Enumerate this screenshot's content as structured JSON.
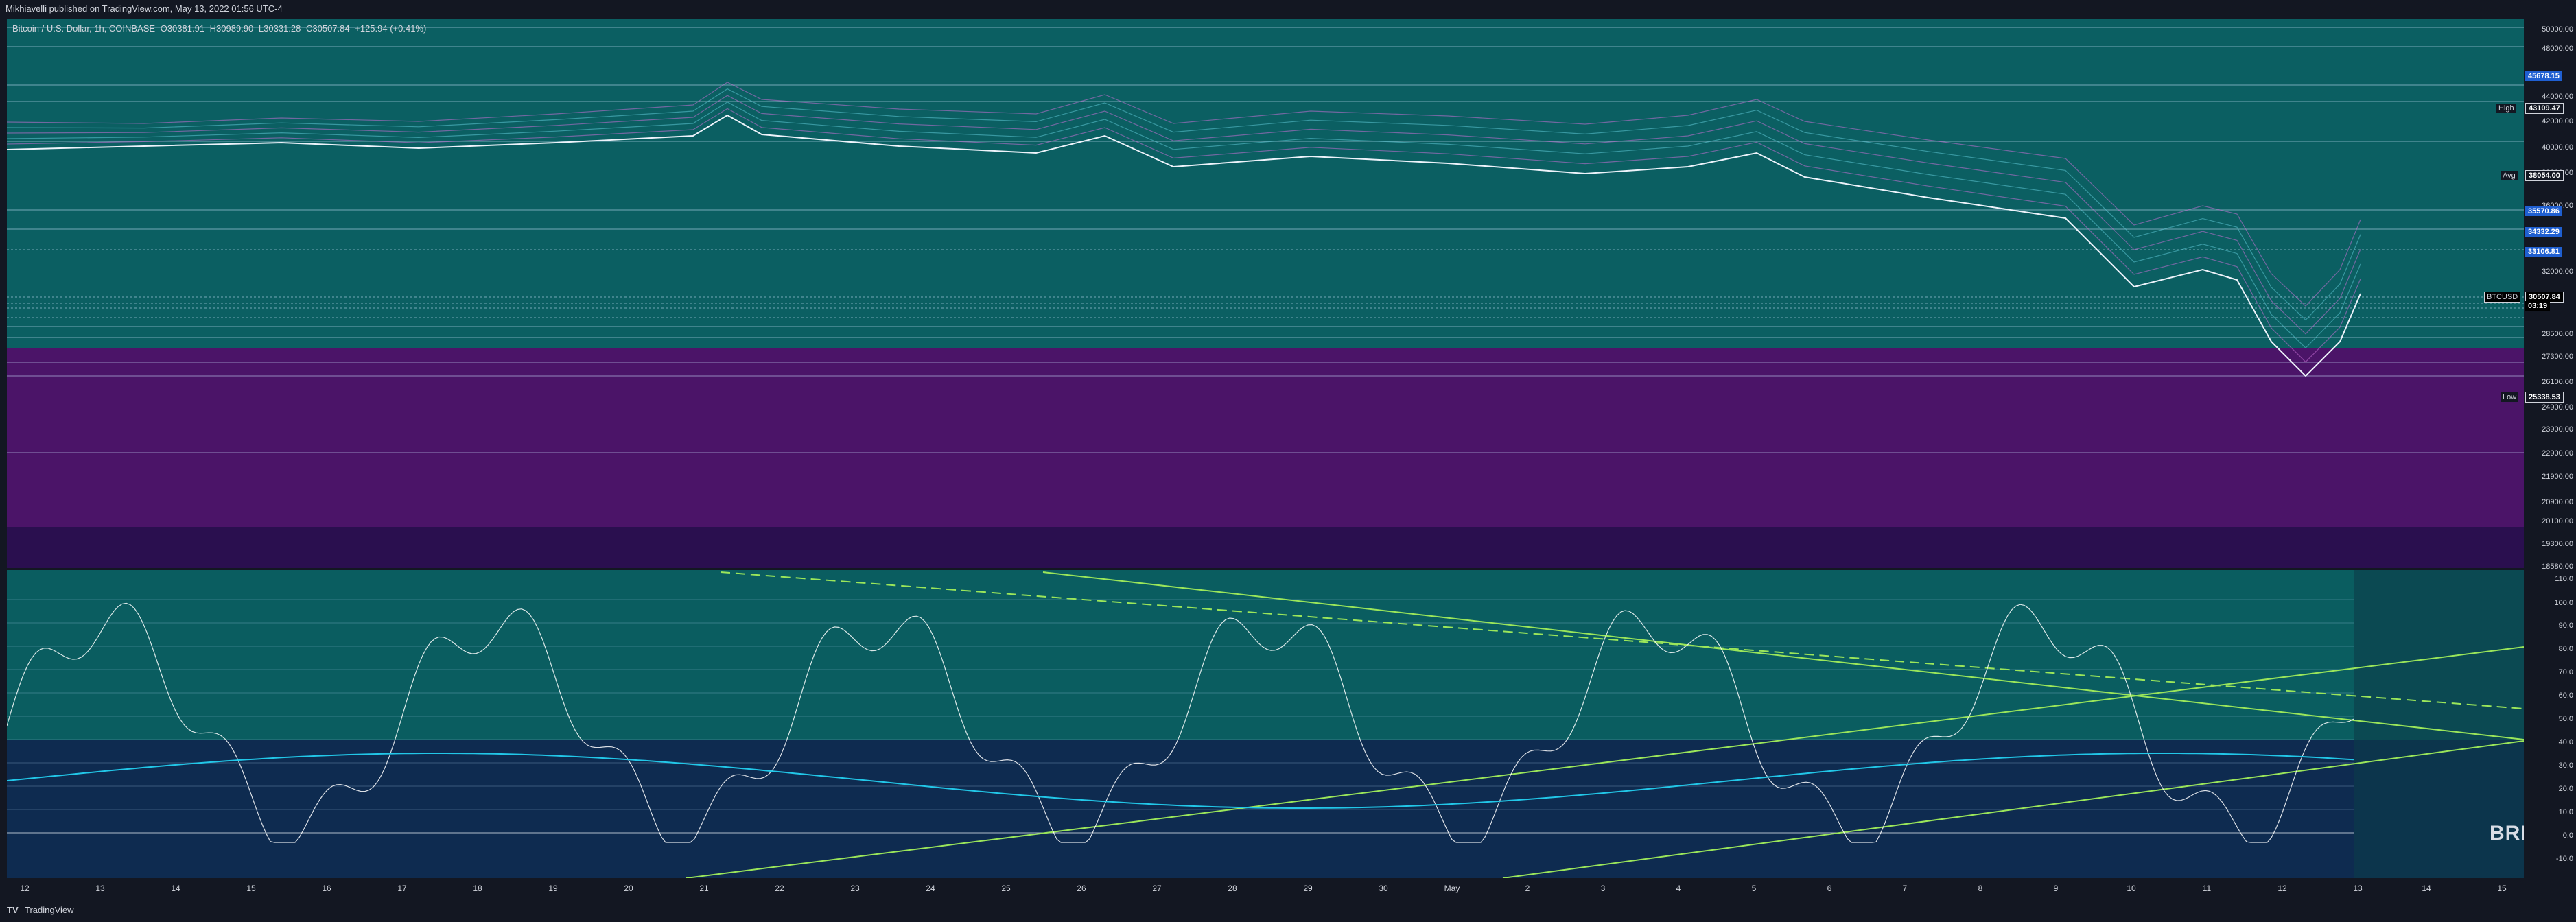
{
  "header": {
    "publisher_line": "Mikhiavelli published on TradingView.com, May 13, 2022 01:56 UTC-4"
  },
  "legend": {
    "symbol": "Bitcoin / U.S. Dollar, 1h, COINBASE",
    "open": "O30381.91",
    "high": "H30989.90",
    "low": "L30331.28",
    "close": "C30507.84",
    "change": "+125.94 (+0.41%)"
  },
  "price_axis": {
    "ticks": [
      "50000.00",
      "48000.00",
      "44000.00",
      "42000.00",
      "40000.00",
      "38000.00",
      "36000.00",
      "32000.00",
      "28500.00",
      "27300.00",
      "26100.00",
      "24900.00",
      "23900.00",
      "22900.00",
      "21900.00",
      "20900.00",
      "20100.00",
      "19300.00",
      "18580.00"
    ],
    "tags": {
      "t1": {
        "value": "45678.15"
      },
      "t2": {
        "value": "43109.47"
      },
      "t3": {
        "value": "38054.00"
      },
      "t4": {
        "value": "35570.86"
      },
      "t5": {
        "value": "34332.29"
      },
      "t6": {
        "value": "33106.81"
      },
      "t7": {
        "value": "30507.84"
      },
      "t8": {
        "value": "03:19"
      },
      "t9": {
        "value": "25338.53"
      }
    },
    "labels": {
      "high": "High",
      "avg": "Avg",
      "low": "Low",
      "symbol": "BTCUSD"
    }
  },
  "osc_axis": {
    "ticks": [
      "110.0",
      "100.0",
      "90.0",
      "80.0",
      "70.0",
      "60.0",
      "50.0",
      "40.0",
      "30.0",
      "20.0",
      "10.0",
      "0.0",
      "-10.0"
    ]
  },
  "time_axis": {
    "ticks": [
      "12",
      "13",
      "14",
      "15",
      "16",
      "17",
      "18",
      "19",
      "20",
      "21",
      "22",
      "23",
      "24",
      "25",
      "26",
      "27",
      "28",
      "29",
      "30",
      "May",
      "2",
      "3",
      "4",
      "5",
      "6",
      "7",
      "8",
      "9",
      "10",
      "11",
      "12",
      "13",
      "14",
      "15"
    ]
  },
  "overlay_text": "BRE",
  "footer": {
    "logo": "TV",
    "brand": "TradingView"
  },
  "colors": {
    "bg": "#131722",
    "price_teal": "#0b5f62",
    "price_purple": "#4b1468",
    "osc_teal": "#0a5d60",
    "osc_navy": "#10174a",
    "trend_green": "#9be65a",
    "price_line": "#eef3fb",
    "tag_blue": "#1f5fd1"
  }
}
